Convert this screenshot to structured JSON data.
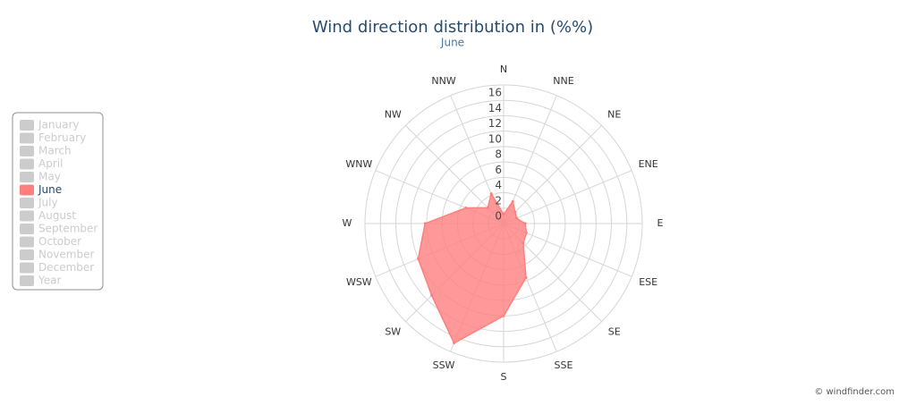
{
  "chart_data": {
    "type": "radar",
    "title": "Wind direction distribution in (%%)",
    "subtitle": "June",
    "credit": "© windfinder.com",
    "categories": [
      "N",
      "NNE",
      "NE",
      "ENE",
      "E",
      "ESE",
      "SE",
      "SSE",
      "S",
      "SSW",
      "SW",
      "WSW",
      "W",
      "WNW",
      "NW",
      "NNW"
    ],
    "series": [
      {
        "name": "June",
        "color": "#ff7f7f",
        "values": [
          1.2,
          3.1,
          2.1,
          1.8,
          2.8,
          3.2,
          3.6,
          7.6,
          12,
          16.8,
          13.2,
          12,
          10.2,
          5.3,
          2.9,
          4.2
        ]
      }
    ],
    "ylim": [
      0,
      18
    ],
    "yticks": [
      0,
      2,
      4,
      6,
      8,
      10,
      12,
      14,
      16
    ],
    "grid": true,
    "legend_items": [
      {
        "label": "January",
        "active": false
      },
      {
        "label": "February",
        "active": false
      },
      {
        "label": "March",
        "active": false
      },
      {
        "label": "April",
        "active": false
      },
      {
        "label": "May",
        "active": false
      },
      {
        "label": "June",
        "active": true
      },
      {
        "label": "July",
        "active": false
      },
      {
        "label": "August",
        "active": false
      },
      {
        "label": "September",
        "active": false
      },
      {
        "label": "October",
        "active": false
      },
      {
        "label": "November",
        "active": false
      },
      {
        "label": "December",
        "active": false
      },
      {
        "label": "Year",
        "active": false
      }
    ]
  }
}
